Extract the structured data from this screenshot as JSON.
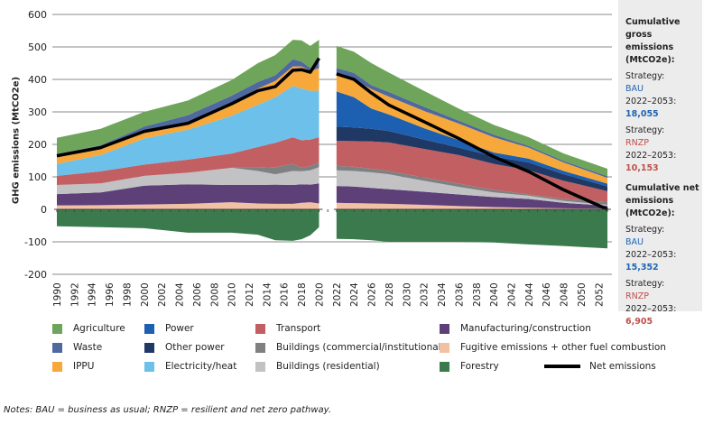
{
  "chart_data": {
    "type": "area",
    "stacked": true,
    "ylabel": "GHG emissions (MtCO2e)",
    "ylim": [
      -200,
      600
    ],
    "yticks": [
      600,
      500,
      400,
      300,
      200,
      100,
      0,
      -100,
      -200
    ],
    "ytick_labels": [
      "600",
      "500",
      "400",
      "300",
      "200",
      "100",
      "0",
      "-100",
      "-200"
    ],
    "xlim": [
      1990,
      2053
    ],
    "xtick_labels": [
      "1990",
      "1992",
      "1994",
      "1996",
      "1998",
      "2000",
      "2002",
      "2004",
      "2006",
      "2008",
      "2010",
      "2012",
      "2014",
      "2016",
      "2018",
      "2020",
      "2022",
      "2024",
      "2026",
      "2028",
      "2030",
      "2032",
      "2034",
      "2036",
      "2038",
      "2040",
      "2042",
      "2044",
      "2046",
      "2048",
      "2050",
      "2052"
    ],
    "grid": "horizontal",
    "segments": [
      {
        "x": [
          1990,
          1995,
          2000,
          2005,
          2010,
          2013,
          2015,
          2017,
          2018,
          2019,
          2020
        ],
        "series": [
          {
            "name": "Fugitive emissions + other fuel combustion",
            "color": "#f2c1a3",
            "values": [
              12,
              13,
              15,
              17,
              22,
              18,
              17,
              17,
              20,
              22,
              18
            ]
          },
          {
            "name": "Manufacturing/construction",
            "color": "#5e4079",
            "values": [
              35,
              39,
              58,
              60,
              53,
              57,
              59,
              58,
              57,
              54,
              62
            ]
          },
          {
            "name": "Buildings (residential)",
            "color": "#c2c2c4",
            "values": [
              28,
              28,
              30,
              36,
              53,
              43,
              32,
              43,
              40,
              44,
              50
            ]
          },
          {
            "name": "Buildings (commercial/institutional)",
            "color": "#7f8082",
            "values": [
              0,
              0,
              0,
              0,
              0,
              10,
              22,
              22,
              11,
              13,
              15
            ]
          },
          {
            "name": "Transport",
            "color": "#c25f63",
            "values": [
              28,
              37,
              35,
              40,
              44,
              64,
              75,
              82,
              85,
              82,
              77
            ]
          },
          {
            "name": "Electricity/heat",
            "color": "#6cc0ea",
            "values": [
              37,
              50,
              80,
              92,
              116,
              130,
              140,
              158,
              159,
              150,
              143
            ]
          },
          {
            "name": "IPPU",
            "color": "#f7a83a",
            "values": [
              20,
              18,
              22,
              23,
              37,
              50,
              50,
              60,
              68,
              60,
              70
            ]
          },
          {
            "name": "Waste",
            "color": "#4f68a0",
            "values": [
              10,
              12,
              15,
              22,
              25,
              20,
              18,
              22,
              15,
              10,
              20
            ]
          },
          {
            "name": "Agriculture",
            "color": "#6ea55a",
            "values": [
              50,
              51,
              45,
              45,
              48,
              58,
              62,
              60,
              65,
              68,
              67
            ]
          }
        ],
        "forestry": [
          -52,
          -55,
          -58,
          -72,
          -72,
          -78,
          -95,
          -97,
          -92,
          -80,
          -55
        ],
        "net": [
          165,
          190,
          240,
          265,
          325,
          365,
          378,
          428,
          430,
          422,
          465
        ]
      },
      {
        "x": [
          2022,
          2024,
          2026,
          2028,
          2032,
          2036,
          2040,
          2044,
          2048,
          2053
        ],
        "series": [
          {
            "name": "Fugitive emissions + other fuel combustion",
            "color": "#f2c1a3",
            "values": [
              20,
              19,
              18,
              17,
              14,
              10,
              7,
              5,
              3,
              2
            ]
          },
          {
            "name": "Manufacturing/construction",
            "color": "#5e4079",
            "values": [
              52,
              51,
              48,
              45,
              40,
              36,
              31,
              27,
              17,
              9
            ]
          },
          {
            "name": "Buildings (residential)",
            "color": "#c2c2c4",
            "values": [
              48,
              48,
              48,
              46,
              34,
              23,
              14,
              10,
              6,
              3
            ]
          },
          {
            "name": "Buildings (commercial/institutional)",
            "color": "#7f8082",
            "values": [
              14,
              13,
              11,
              10,
              10,
              10,
              8,
              4,
              6,
              9
            ]
          },
          {
            "name": "Transport",
            "color": "#c25f63",
            "values": [
              77,
              79,
              84,
              88,
              88,
              88,
              80,
              74,
              56,
              33
            ]
          },
          {
            "name": "Other power",
            "color": "#1f3864",
            "values": [
              44,
              42,
              39,
              35,
              29,
              23,
              23,
              24,
              20,
              15
            ]
          },
          {
            "name": "Power",
            "color": "#1d5fb0",
            "values": [
              108,
              93,
              62,
              51,
              35,
              23,
              12,
              12,
              10,
              8
            ]
          },
          {
            "name": "IPPU",
            "color": "#f7a83a",
            "values": [
              49,
              53,
              60,
              55,
              53,
              51,
              47,
              34,
              26,
              18
            ]
          },
          {
            "name": "Waste",
            "color": "#4f68a0",
            "values": [
              23,
              22,
              12,
              14,
              13,
              9,
              8,
              5,
              5,
              5
            ]
          },
          {
            "name": "Agriculture",
            "color": "#6ea55a",
            "values": [
              68,
              65,
              68,
              60,
              49,
              37,
              30,
              27,
              23,
              23
            ]
          }
        ],
        "forestry": [
          -91,
          -92,
          -95,
          -100,
          -100,
          -100,
          -102,
          -108,
          -113,
          -120
        ],
        "net": [
          417,
          400,
          358,
          321,
          270,
          218,
          162,
          116,
          60,
          0
        ]
      }
    ],
    "forestry_color": "#3a7a4c",
    "net_color": "#000000"
  },
  "legend": [
    {
      "label": "Agriculture",
      "color": "#6ea55a"
    },
    {
      "label": "Power",
      "color": "#1d5fb0"
    },
    {
      "label": "Transport",
      "color": "#c25f63"
    },
    {
      "label": "Manufacturing/construction",
      "color": "#5e4079"
    },
    {
      "label": "Waste",
      "color": "#4f68a0"
    },
    {
      "label": "Other power",
      "color": "#1f3864"
    },
    {
      "label": "Buildings (commercial/institutional)",
      "color": "#7f8082"
    },
    {
      "label": "Fugitive emissions + other fuel combustion",
      "color": "#f2c1a3"
    },
    {
      "label": "IPPU",
      "color": "#f7a83a"
    },
    {
      "label": "Electricity/heat",
      "color": "#6cc0ea"
    },
    {
      "label": "Buildings (residential)",
      "color": "#c2c2c4"
    },
    {
      "label": "Forestry",
      "color": "#3a7a4c"
    },
    {
      "label": "Net emissions",
      "color": "#000000"
    }
  ],
  "panel": {
    "gross_title": "Cumulative gross emissions (MtCO2e):",
    "net_title": "Cumulative net emissions (MtCO2e):",
    "strategy_label": "Strategy:",
    "period": "2022–2053:",
    "bau": "BAU",
    "rnzp": "RNZP",
    "gross_bau": "18,055",
    "gross_rnzp": "10,153",
    "net_bau": "15,352",
    "net_rnzp": "6,905"
  },
  "notes": "Notes: BAU = business as usual; RNZP = resilient and net zero pathway."
}
